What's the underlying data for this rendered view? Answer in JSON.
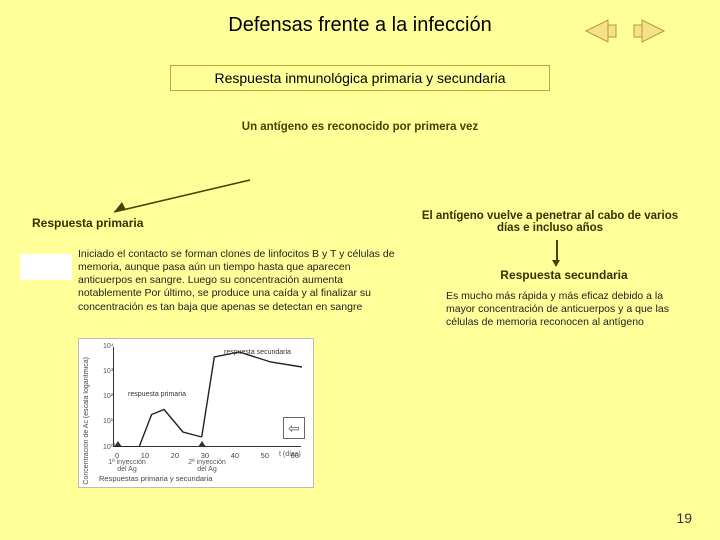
{
  "title": "Defensas frente a la infección",
  "subtitle": "Respuesta inmunológica primaria y secundaria",
  "first_recognition": "Un antígeno es reconocido por primera vez",
  "primary": {
    "label": "Respuesta primaria",
    "body": "Iniciado el contacto se forman clones de linfocitos B y T y células de memoria, aunque pasa aún un tiempo hasta que aparecen anticuerpos en sangre.\nLuego su concentración aumenta notablemente\nPor último, se produce una caída y al finalizar su concentración es tan baja que apenas se detectan en sangre"
  },
  "antigen_return": "El antígeno vuelve a penetrar al cabo de varios días e incluso años",
  "secondary": {
    "label": "Respuesta secundaria",
    "body": "Es mucho más rápida y más eficaz debido a la mayor concentración de anticuerpos y a que las células de memoria reconocen al antígeno"
  },
  "page_number": "19",
  "chart": {
    "type": "line",
    "ylabel": "Concentración de Ac (escala logarítmica)",
    "xlabel_unit": "t (días)",
    "xticks": [
      "0",
      "10",
      "20",
      "30",
      "40",
      "50",
      "60"
    ],
    "yticks": [
      "10⁰",
      "10¹",
      "10²",
      "10³",
      "10⁴"
    ],
    "ylim": [
      0,
      4
    ],
    "xlim": [
      0,
      60
    ],
    "primary_curve": [
      [
        0,
        0
      ],
      [
        8,
        0
      ],
      [
        12,
        1.3
      ],
      [
        16,
        1.5
      ],
      [
        22,
        0.6
      ],
      [
        28,
        0.4
      ]
    ],
    "secondary_curve": [
      [
        28,
        0.4
      ],
      [
        32,
        3.6
      ],
      [
        40,
        3.8
      ],
      [
        50,
        3.4
      ],
      [
        60,
        3.2
      ]
    ],
    "primary_series_label": "respuesta primaria",
    "secondary_series_label": "respuesta secundaria",
    "injection1": "1ª inyección del Ag",
    "injection2": "2ª inyección del Ag",
    "caption": "Respuestas primaria y secundaria",
    "line_color": "#222222",
    "line_width": 1.4,
    "background_color": "#ffffff"
  },
  "colors": {
    "page_bg": "#ffff99",
    "box_border": "#c0a838",
    "heading_text": "#333300",
    "arrow_nav": "#e6c25a"
  }
}
